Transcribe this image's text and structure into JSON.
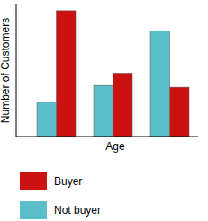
{
  "chart_data": {
    "type": "bar",
    "x_label": "Age",
    "y_label": "Number of Customers",
    "categories": [
      null,
      null,
      null
    ],
    "series": [
      {
        "name": "Buyer",
        "color": "#cc1111",
        "values": [
          143,
          72,
          56
        ]
      },
      {
        "name": "Not buyer",
        "color": "#5bbdc8",
        "values": [
          39,
          58,
          120
        ]
      }
    ],
    "ylim": [
      0,
      150
    ],
    "tick_labels": false,
    "legend": "bottom"
  }
}
